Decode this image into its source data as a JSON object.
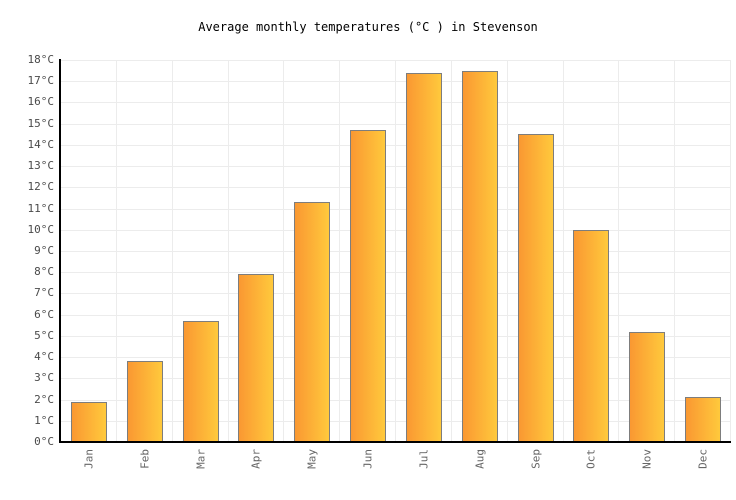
{
  "title": "Average monthly temperatures (°C ) in Stevenson",
  "chart_data": {
    "type": "bar",
    "title": "Average monthly temperatures (°C ) in Stevenson",
    "categories": [
      "Jan",
      "Feb",
      "Mar",
      "Apr",
      "May",
      "Jun",
      "Jul",
      "Aug",
      "Sep",
      "Oct",
      "Nov",
      "Dec"
    ],
    "values": [
      1.9,
      3.8,
      5.7,
      7.9,
      11.3,
      14.7,
      17.4,
      17.5,
      14.5,
      10,
      5.2,
      2.1
    ],
    "xlabel": "",
    "ylabel": "",
    "ylim": [
      0,
      18
    ],
    "y_tick_step": 1,
    "y_tick_suffix": "°C",
    "grid": true,
    "legend": false,
    "series_name": "Average monthly temperature"
  },
  "colors": {
    "background": "#ffffff",
    "bar_gradient_left": "#fa9832",
    "bar_gradient_right": "#ffc93c",
    "bar_border": "#7d7d7d",
    "gridline": "#ececec",
    "axis": "#000000",
    "y_tick_label": "#4a4a4a",
    "x_tick_label": "#666666",
    "title": "#000000"
  }
}
